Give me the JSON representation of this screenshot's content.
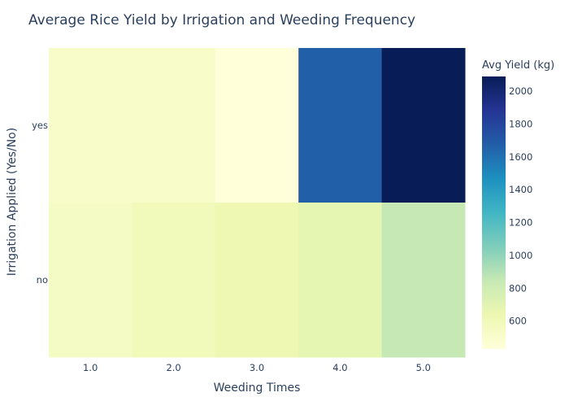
{
  "chart_data": {
    "type": "heatmap",
    "title": "Average Rice Yield by Irrigation and Weeding Frequency",
    "xlabel": "Weeding Times",
    "ylabel": "Irrigation Applied (Yes/No)",
    "x_categories": [
      "1.0",
      "2.0",
      "3.0",
      "4.0",
      "5.0"
    ],
    "y_categories": [
      "yes",
      "no"
    ],
    "z": [
      [
        520,
        520,
        430,
        1670,
        2090
      ],
      [
        540,
        590,
        630,
        680,
        850
      ]
    ],
    "colorbar": {
      "title": "Avg Yield (kg)",
      "zmin": 430,
      "zmax": 2090,
      "ticks": [
        600,
        800,
        1000,
        1200,
        1400,
        1600,
        1800,
        2000
      ],
      "colorscale": "YlGnBu"
    },
    "grid": false,
    "legend": "none"
  }
}
